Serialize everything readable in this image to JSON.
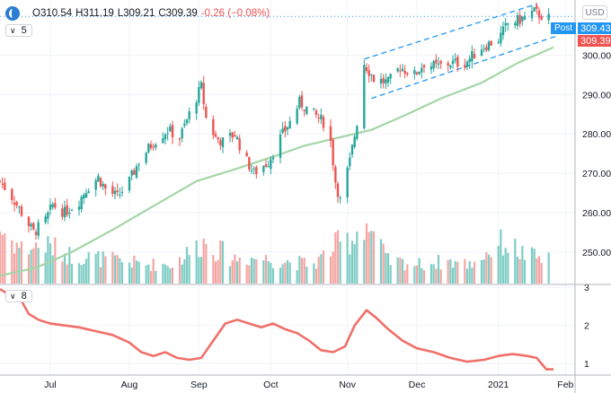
{
  "header": {
    "open_label": "O310.54",
    "high_label": "H311.19",
    "low_label": "L309.21",
    "close_label": "C309.39",
    "change_label": "-0.26 (−0.08%)"
  },
  "main_pane": {
    "indicator_count": "5"
  },
  "sub_pane": {
    "indicator_count": "8"
  },
  "currency_badge": "USD",
  "post_label": "Post",
  "last_price_label": "309.43",
  "close_price_label": "309.39",
  "colors": {
    "up": "#26a69a",
    "down": "#ef5350",
    "ma": "#a5d6a7",
    "channel": "#2196f3",
    "indicator": "#f07069",
    "vol_up": "#7ecdc4",
    "vol_down": "#f4a6a3"
  },
  "chart_data": [
    {
      "type": "candlestick",
      "y_ticks": [
        "300.00",
        "290.00",
        "280.00",
        "270.00",
        "260.00",
        "250.00"
      ],
      "ylim": [
        242,
        314
      ],
      "x_ticks": [
        "Jul",
        "Aug",
        "Sep",
        "Oct",
        "Nov",
        "Dec",
        "2021",
        "Feb"
      ],
      "x_tick_positions": [
        "2020-07-01",
        "2020-08-03",
        "2020-09-01",
        "2020-10-01",
        "2020-11-02",
        "2020-12-01",
        "2021-01-04",
        "2021-02-01"
      ],
      "xlim": [
        "2020-06-10",
        "2021-02-05"
      ],
      "close": [
        {
          "date": "2020-06-10",
          "value": 268
        },
        {
          "date": "2020-06-15",
          "value": 264
        },
        {
          "date": "2020-06-19",
          "value": 260
        },
        {
          "date": "2020-06-24",
          "value": 255
        },
        {
          "date": "2020-06-29",
          "value": 258
        },
        {
          "date": "2020-07-02",
          "value": 262
        },
        {
          "date": "2020-07-07",
          "value": 260
        },
        {
          "date": "2020-07-13",
          "value": 263
        },
        {
          "date": "2020-07-16",
          "value": 266
        },
        {
          "date": "2020-07-21",
          "value": 269
        },
        {
          "date": "2020-07-24",
          "value": 266
        },
        {
          "date": "2020-07-29",
          "value": 264
        },
        {
          "date": "2020-08-03",
          "value": 268
        },
        {
          "date": "2020-08-07",
          "value": 273
        },
        {
          "date": "2020-08-13",
          "value": 278
        },
        {
          "date": "2020-08-19",
          "value": 281
        },
        {
          "date": "2020-08-24",
          "value": 279
        },
        {
          "date": "2020-08-28",
          "value": 285
        },
        {
          "date": "2020-09-02",
          "value": 292
        },
        {
          "date": "2020-09-04",
          "value": 284
        },
        {
          "date": "2020-09-08",
          "value": 279
        },
        {
          "date": "2020-09-11",
          "value": 278
        },
        {
          "date": "2020-09-16",
          "value": 280
        },
        {
          "date": "2020-09-21",
          "value": 273
        },
        {
          "date": "2020-09-24",
          "value": 270
        },
        {
          "date": "2020-09-30",
          "value": 273
        },
        {
          "date": "2020-10-05",
          "value": 279
        },
        {
          "date": "2020-10-09",
          "value": 283
        },
        {
          "date": "2020-10-13",
          "value": 288
        },
        {
          "date": "2020-10-19",
          "value": 285
        },
        {
          "date": "2020-10-23",
          "value": 283
        },
        {
          "date": "2020-10-26",
          "value": 278
        },
        {
          "date": "2020-10-28",
          "value": 268
        },
        {
          "date": "2020-10-30",
          "value": 263
        },
        {
          "date": "2020-11-03",
          "value": 273
        },
        {
          "date": "2020-11-06",
          "value": 283
        },
        {
          "date": "2020-11-09",
          "value": 298
        },
        {
          "date": "2020-11-13",
          "value": 294
        },
        {
          "date": "2020-11-19",
          "value": 293
        },
        {
          "date": "2020-11-24",
          "value": 297
        },
        {
          "date": "2020-11-30",
          "value": 295
        },
        {
          "date": "2020-12-04",
          "value": 298
        },
        {
          "date": "2020-12-09",
          "value": 297
        },
        {
          "date": "2020-12-15",
          "value": 298
        },
        {
          "date": "2020-12-21",
          "value": 298
        },
        {
          "date": "2020-12-28",
          "value": 302
        },
        {
          "date": "2021-01-04",
          "value": 304
        },
        {
          "date": "2021-01-08",
          "value": 308
        },
        {
          "date": "2021-01-13",
          "value": 309
        },
        {
          "date": "2021-01-19",
          "value": 311
        },
        {
          "date": "2021-01-22",
          "value": 310
        },
        {
          "date": "2021-01-25",
          "value": 309.39
        }
      ],
      "moving_average": [
        {
          "date": "2020-06-10",
          "value": 244
        },
        {
          "date": "2020-06-25",
          "value": 246
        },
        {
          "date": "2020-07-10",
          "value": 250
        },
        {
          "date": "2020-07-28",
          "value": 256
        },
        {
          "date": "2020-08-14",
          "value": 262
        },
        {
          "date": "2020-08-31",
          "value": 268
        },
        {
          "date": "2020-09-16",
          "value": 271
        },
        {
          "date": "2020-10-01",
          "value": 274
        },
        {
          "date": "2020-10-15",
          "value": 277
        },
        {
          "date": "2020-10-29",
          "value": 279
        },
        {
          "date": "2020-11-12",
          "value": 281
        },
        {
          "date": "2020-11-27",
          "value": 285
        },
        {
          "date": "2020-12-11",
          "value": 289
        },
        {
          "date": "2020-12-28",
          "value": 293
        },
        {
          "date": "2021-01-12",
          "value": 298
        },
        {
          "date": "2021-01-27",
          "value": 302
        }
      ],
      "channel_upper": [
        {
          "date": "2020-11-09",
          "value": 299
        },
        {
          "date": "2021-01-20",
          "value": 313
        }
      ],
      "channel_lower": [
        {
          "date": "2020-11-12",
          "value": 289
        },
        {
          "date": "2021-01-29",
          "value": 305
        }
      ],
      "volume": [
        {
          "date": "2020-06-10",
          "value": 0.85
        },
        {
          "date": "2020-06-19",
          "value": 0.55
        },
        {
          "date": "2020-06-29",
          "value": 0.6
        },
        {
          "date": "2020-07-09",
          "value": 0.45
        },
        {
          "date": "2020-07-20",
          "value": 0.4
        },
        {
          "date": "2020-07-31",
          "value": 0.35
        },
        {
          "date": "2020-08-11",
          "value": 0.3
        },
        {
          "date": "2020-08-21",
          "value": 0.3
        },
        {
          "date": "2020-09-03",
          "value": 0.65
        },
        {
          "date": "2020-09-15",
          "value": 0.4
        },
        {
          "date": "2020-09-25",
          "value": 0.4
        },
        {
          "date": "2020-10-07",
          "value": 0.35
        },
        {
          "date": "2020-10-19",
          "value": 0.3
        },
        {
          "date": "2020-10-28",
          "value": 0.6
        },
        {
          "date": "2020-11-04",
          "value": 0.7
        },
        {
          "date": "2020-11-09",
          "value": 1.0
        },
        {
          "date": "2020-11-19",
          "value": 0.35
        },
        {
          "date": "2020-12-02",
          "value": 0.3
        },
        {
          "date": "2020-12-14",
          "value": 0.35
        },
        {
          "date": "2020-12-23",
          "value": 0.3
        },
        {
          "date": "2021-01-06",
          "value": 0.65
        },
        {
          "date": "2021-01-15",
          "value": 0.45
        },
        {
          "date": "2021-01-27",
          "value": 0.35
        }
      ]
    },
    {
      "type": "line",
      "y_ticks": [
        "3",
        "2",
        "1"
      ],
      "ylim": [
        0.7,
        3.05
      ],
      "series": [
        {
          "values": [
            {
              "date": "2020-06-10",
              "value": 2.95
            },
            {
              "date": "2020-06-14",
              "value": 2.8
            },
            {
              "date": "2020-06-18",
              "value": 2.75
            },
            {
              "date": "2020-06-22",
              "value": 2.3
            },
            {
              "date": "2020-06-26",
              "value": 2.15
            },
            {
              "date": "2020-07-01",
              "value": 2.05
            },
            {
              "date": "2020-07-07",
              "value": 2.0
            },
            {
              "date": "2020-07-13",
              "value": 1.95
            },
            {
              "date": "2020-07-20",
              "value": 1.85
            },
            {
              "date": "2020-07-27",
              "value": 1.75
            },
            {
              "date": "2020-08-03",
              "value": 1.55
            },
            {
              "date": "2020-08-08",
              "value": 1.3
            },
            {
              "date": "2020-08-13",
              "value": 1.2
            },
            {
              "date": "2020-08-18",
              "value": 1.3
            },
            {
              "date": "2020-08-23",
              "value": 1.15
            },
            {
              "date": "2020-08-28",
              "value": 1.1
            },
            {
              "date": "2020-09-02",
              "value": 1.15
            },
            {
              "date": "2020-09-07",
              "value": 1.6
            },
            {
              "date": "2020-09-12",
              "value": 2.05
            },
            {
              "date": "2020-09-17",
              "value": 2.15
            },
            {
              "date": "2020-09-22",
              "value": 2.05
            },
            {
              "date": "2020-09-27",
              "value": 1.95
            },
            {
              "date": "2020-10-02",
              "value": 2.05
            },
            {
              "date": "2020-10-07",
              "value": 1.9
            },
            {
              "date": "2020-10-12",
              "value": 1.8
            },
            {
              "date": "2020-10-17",
              "value": 1.6
            },
            {
              "date": "2020-10-22",
              "value": 1.35
            },
            {
              "date": "2020-10-27",
              "value": 1.3
            },
            {
              "date": "2020-11-01",
              "value": 1.45
            },
            {
              "date": "2020-11-05",
              "value": 2.0
            },
            {
              "date": "2020-11-10",
              "value": 2.4
            },
            {
              "date": "2020-11-14",
              "value": 2.2
            },
            {
              "date": "2020-11-19",
              "value": 1.9
            },
            {
              "date": "2020-11-25",
              "value": 1.6
            },
            {
              "date": "2020-12-01",
              "value": 1.4
            },
            {
              "date": "2020-12-08",
              "value": 1.3
            },
            {
              "date": "2020-12-15",
              "value": 1.15
            },
            {
              "date": "2020-12-22",
              "value": 1.05
            },
            {
              "date": "2020-12-29",
              "value": 1.1
            },
            {
              "date": "2021-01-04",
              "value": 1.2
            },
            {
              "date": "2021-01-10",
              "value": 1.25
            },
            {
              "date": "2021-01-16",
              "value": 1.2
            },
            {
              "date": "2021-01-20",
              "value": 1.15
            },
            {
              "date": "2021-01-24",
              "value": 0.85
            },
            {
              "date": "2021-01-27",
              "value": 0.85
            }
          ]
        }
      ]
    }
  ]
}
